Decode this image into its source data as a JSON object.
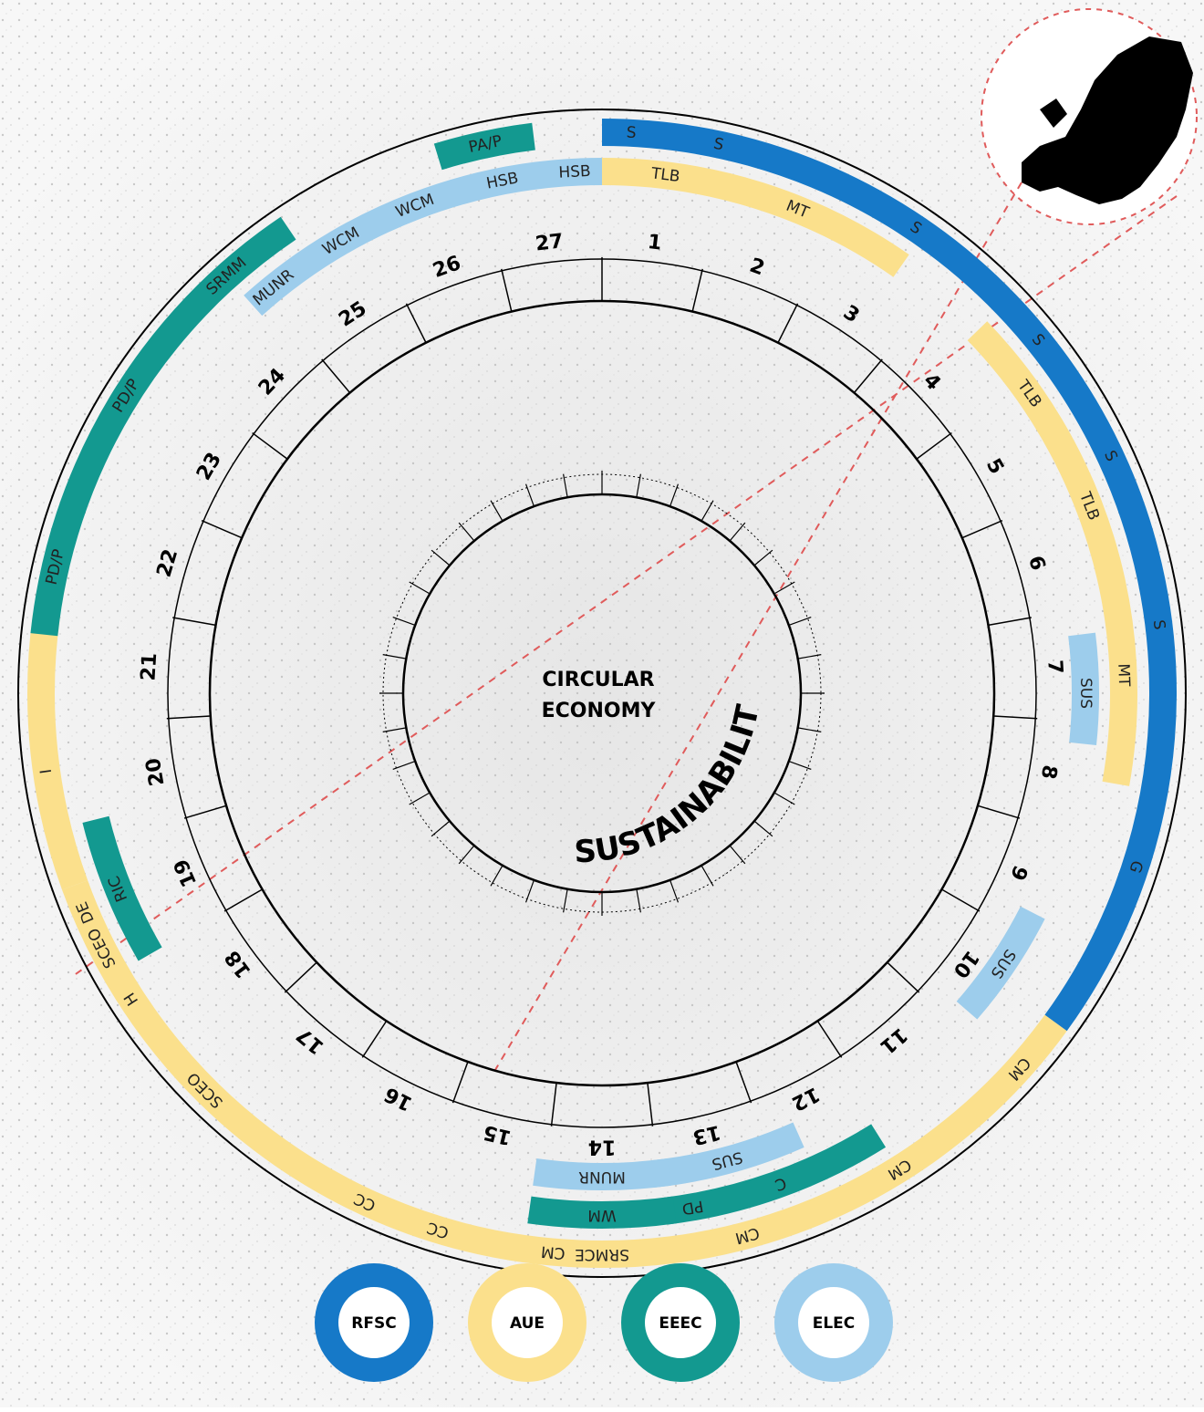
{
  "center": {
    "line1": "CIRCULAR",
    "line2": "ECONOMY",
    "curved": "SUSTAINABILITY"
  },
  "sectors": [
    "1",
    "2",
    "3",
    "4",
    "5",
    "6",
    "7",
    "8",
    "9",
    "10",
    "11",
    "12",
    "13",
    "14",
    "15",
    "16",
    "17",
    "18",
    "19",
    "20",
    "21",
    "22",
    "23",
    "24",
    "25",
    "26",
    "27"
  ],
  "legend": [
    {
      "label": "RFSC",
      "color": "#1679c8"
    },
    {
      "label": "AUE",
      "color": "#fbe08c"
    },
    {
      "label": "EEEC",
      "color": "#139990"
    },
    {
      "label": "ELEC",
      "color": "#9dcdec"
    }
  ],
  "arcs": [
    {
      "framework": "RFSC",
      "color": "#1679c8",
      "from": 0,
      "to": 126,
      "ring": "outer",
      "labels": [
        {
          "text": "S",
          "at": 3
        },
        {
          "text": "S",
          "at": 12
        },
        {
          "text": "S",
          "at": 34
        },
        {
          "text": "S",
          "at": 51
        },
        {
          "text": "S",
          "at": 65
        },
        {
          "text": "S",
          "at": 83
        },
        {
          "text": "G",
          "at": 108
        }
      ]
    },
    {
      "framework": "AUE",
      "color": "#fbe08c",
      "from": 0,
      "to": 35,
      "ring": "middle",
      "labels": [
        {
          "text": "TLB",
          "at": 7
        },
        {
          "text": "MT",
          "at": 22
        }
      ]
    },
    {
      "framework": "AUE",
      "color": "#fbe08c",
      "from": 46,
      "to": 100,
      "ring": "middle",
      "labels": [
        {
          "text": "TLB",
          "at": 55
        },
        {
          "text": "TLB",
          "at": 69
        },
        {
          "text": "MT",
          "at": 88
        }
      ]
    },
    {
      "framework": "ELEC",
      "color": "#9dcdec",
      "from": 83,
      "to": 96,
      "ring": "inner",
      "labels": [
        {
          "text": "SUS",
          "at": 90
        }
      ]
    },
    {
      "framework": "ELEC",
      "color": "#9dcdec",
      "from": 117,
      "to": 131,
      "ring": "inner",
      "labels": [
        {
          "text": "SUS",
          "at": 124
        }
      ]
    },
    {
      "framework": "AUE",
      "color": "#fbe08c",
      "from": 126,
      "to": 250,
      "ring": "outer",
      "labels": [
        {
          "text": "CM",
          "at": 132
        },
        {
          "text": "CM",
          "at": 148
        },
        {
          "text": "CM",
          "at": 165
        },
        {
          "text": "CM",
          "at": 185
        },
        {
          "text": "CC",
          "at": 205
        },
        {
          "text": "CC",
          "at": 197
        },
        {
          "text": "SRMCE",
          "at": 180
        },
        {
          "text": "SCEO",
          "at": 225
        },
        {
          "text": "SCEO",
          "at": 243
        }
      ]
    },
    {
      "framework": "EEEC",
      "color": "#139990",
      "from": 148,
      "to": 173,
      "ring": "middle",
      "labels": [
        {
          "text": "C",
          "at": 160
        },
        {
          "text": "PD",
          "at": 170
        }
      ]
    },
    {
      "framework": "ELEC",
      "color": "#9dcdec",
      "from": 156,
      "to": 174,
      "ring": "inner",
      "labels": [
        {
          "text": "SUS",
          "at": 165
        }
      ]
    },
    {
      "framework": "EEEC",
      "color": "#139990",
      "from": 172,
      "to": 188,
      "ring": "middle",
      "labels": [
        {
          "text": "WM",
          "at": 180
        }
      ]
    },
    {
      "framework": "ELEC",
      "color": "#9dcdec",
      "from": 172,
      "to": 188,
      "ring": "inner",
      "labels": [
        {
          "text": "MUNR",
          "at": 180
        }
      ]
    },
    {
      "framework": "AUE",
      "color": "#fbe08c",
      "from": 250,
      "to": 278,
      "ring": "outer",
      "labels": [
        {
          "text": "H",
          "at": 237
        },
        {
          "text": "DE",
          "at": 247
        },
        {
          "text": "I",
          "at": 262
        }
      ]
    },
    {
      "framework": "EEEC",
      "color": "#139990",
      "from": 240,
      "to": 256,
      "ring": "middle",
      "labels": [
        {
          "text": "RIC",
          "at": 248
        }
      ]
    },
    {
      "framework": "EEEC",
      "color": "#139990",
      "from": 276,
      "to": 326,
      "ring": "outer",
      "labels": [
        {
          "text": "PD/P",
          "at": 283
        },
        {
          "text": "PD/P",
          "at": 302
        },
        {
          "text": "SRMM",
          "at": 318
        }
      ]
    },
    {
      "framework": "ELEC",
      "color": "#9dcdec",
      "from": 318,
      "to": 360,
      "ring": "middle",
      "labels": [
        {
          "text": "MUNR",
          "at": 321
        },
        {
          "text": "WCM",
          "at": 330
        },
        {
          "text": "WCM",
          "at": 339
        },
        {
          "text": "HSB",
          "at": 349
        },
        {
          "text": "HSB",
          "at": 357
        }
      ]
    },
    {
      "framework": "EEEC",
      "color": "#139990",
      "from": 343,
      "to": 353,
      "ring": "outer",
      "labels": [
        {
          "text": "PA/P",
          "at": 348
        }
      ]
    }
  ]
}
